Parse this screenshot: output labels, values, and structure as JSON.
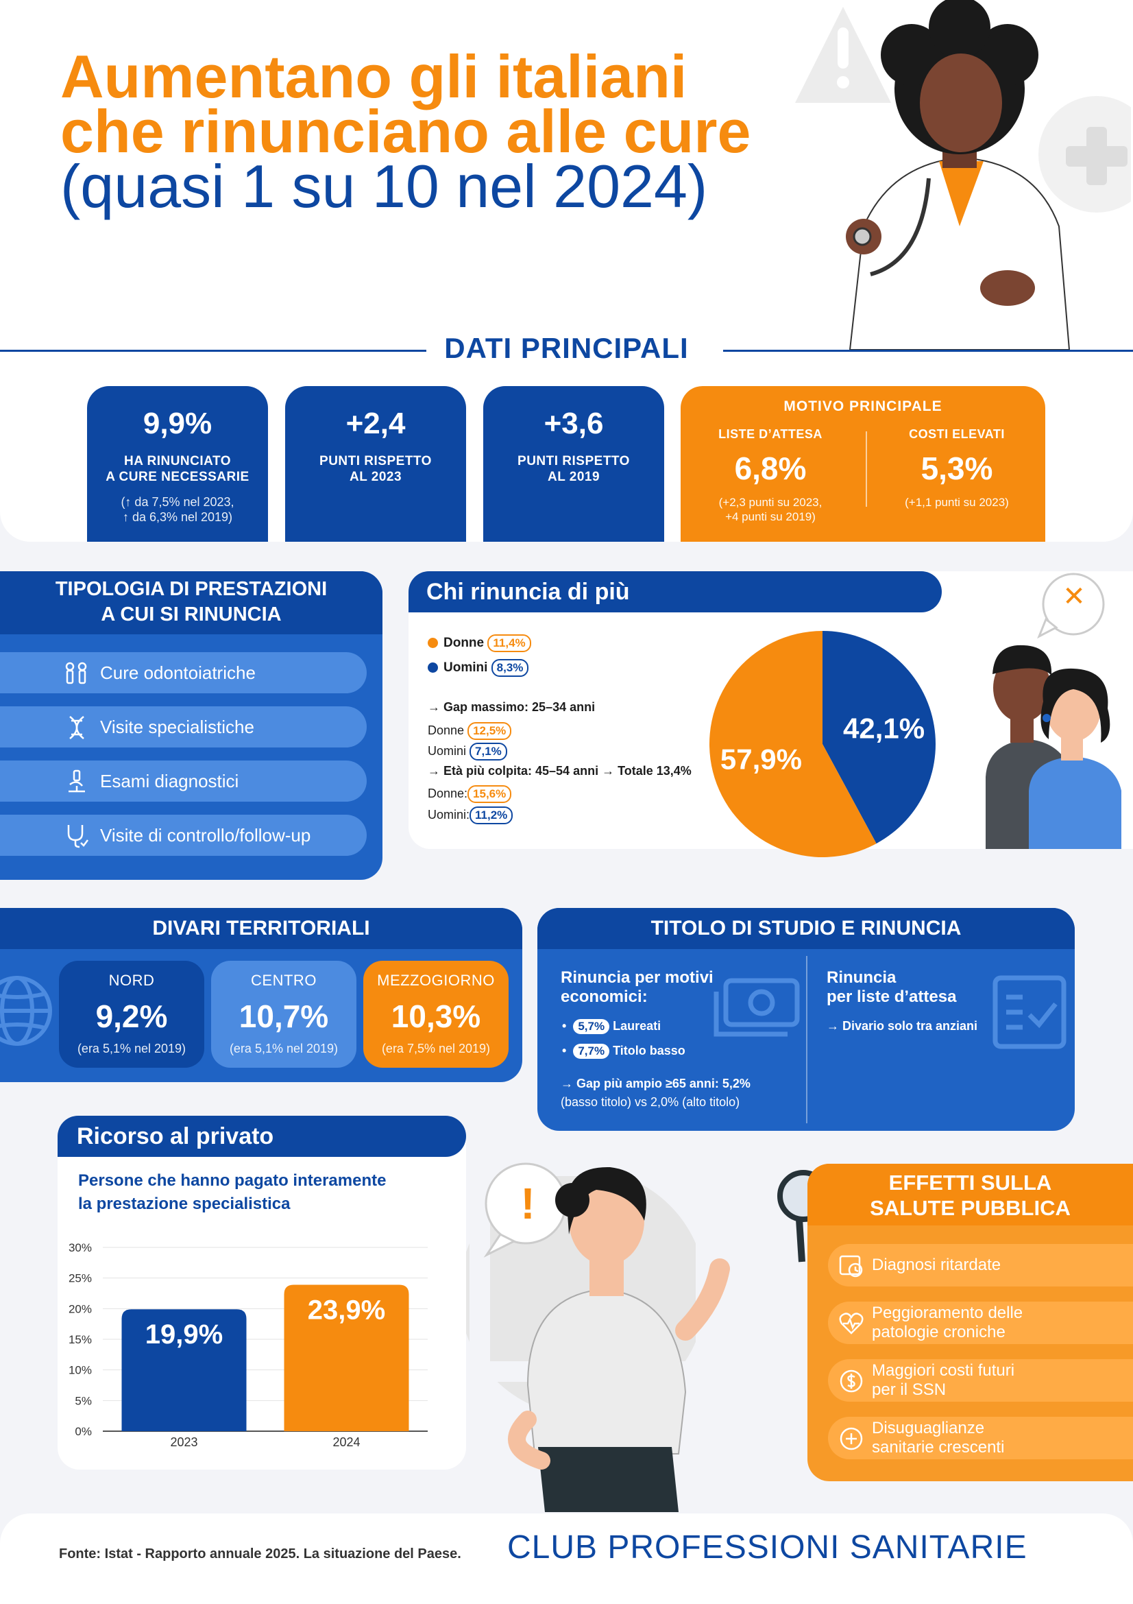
{
  "title": {
    "line1": "Aumentano gli italiani",
    "line2": "che rinunciano alle cure",
    "line3": "(quasi 1 su 10 nel 2024)"
  },
  "dati_principali": {
    "heading": "DATI PRINCIPALI",
    "stats": [
      {
        "value": "9,9%",
        "caption1": "HA RINUNCIATO",
        "caption2": "A CURE NECESSARIE",
        "sub1": "(↑ da 7,5% nel 2023,",
        "sub2": "↑ da 6,3% nel 2019)"
      },
      {
        "value": "+2,4",
        "caption1": "PUNTI RISPETTO",
        "caption2": "AL 2023"
      },
      {
        "value": "+3,6",
        "caption1": "PUNTI RISPETTO",
        "caption2": "AL 2019"
      }
    ],
    "motivo": {
      "title": "MOTIVO PRINCIPALE",
      "liste": {
        "label": "LISTE D’ATTESA",
        "value": "6,8%",
        "sub1": "(+2,3 punti su 2023,",
        "sub2": "+4 punti su 2019)"
      },
      "costi": {
        "label": "COSTI ELEVATI",
        "value": "5,3%",
        "sub1": "(+1,1 punti su 2023)"
      }
    }
  },
  "tipologia": {
    "heading1": "TIPOLOGIA DI PRESTAZIONI",
    "heading2": "A CUI SI RINUNCIA",
    "items": [
      "Cure odontoiatriche",
      "Visite specialistiche",
      "Esami diagnostici",
      "Visite di controllo/follow-up"
    ]
  },
  "chi_rinuncia": {
    "heading": "Chi rinuncia di più",
    "donne_label": "Donne",
    "donne_value": "11,4%",
    "uomini_label": "Uomini",
    "uomini_value": "8,3%",
    "gap_title": "→ Gap massimo: 25–34 anni",
    "gap_donne_label": "Donne",
    "gap_donne_value": "12,5%",
    "gap_uomini_label": "Uomini",
    "gap_uomini_value": "7,1%",
    "eta_title": "→ Età più colpita: 45–54 anni → Totale 13,4%",
    "eta_donne_label": "Donne:",
    "eta_donne_value": "15,6%",
    "eta_uomini_label": "Uomini:",
    "eta_uomini_value": "11,2%",
    "close_symbol": "✕"
  },
  "divari": {
    "heading": "DIVARI TERRITORIALI",
    "regions": [
      {
        "name": "NORD",
        "value": "9,2%",
        "sub": "(era 5,1% nel 2019)"
      },
      {
        "name": "CENTRO",
        "value": "10,7%",
        "sub": "(era 5,1% nel 2019)"
      },
      {
        "name": "MEZZOGIORNO",
        "value": "10,3%",
        "sub": "(era 7,5% nel 2019)"
      }
    ]
  },
  "studio": {
    "heading": "TITOLO DI STUDIO E RINUNCIA",
    "left_title1": "Rinuncia per motivi",
    "left_title2": "economici:",
    "laureati_value": "5,7%",
    "laureati_label": "Laureati",
    "basso_value": "7,7%",
    "basso_label": "Titolo basso",
    "gap1": "→ Gap più ampio ≥65 anni: 5,2%",
    "gap2": "(basso titolo) vs 2,0% (alto titolo)",
    "right_title1": "Rinuncia",
    "right_title2": "per liste d’attesa",
    "right_note": "→ Divario solo tra anziani"
  },
  "privato": {
    "heading": "Ricorso al privato",
    "sub1": "Persone che hanno pagato interamente",
    "sub2": "la prestazione specialistica"
  },
  "alert_symbol": "!",
  "effetti": {
    "heading1": "EFFETTI SULLA",
    "heading2": "SALUTE PUBBLICA",
    "items": [
      {
        "line1": "Diagnosi ritardate",
        "line2": ""
      },
      {
        "line1": "Peggioramento delle",
        "line2": "patologie croniche"
      },
      {
        "line1": "Maggiori costi futuri",
        "line2": "per il SSN"
      },
      {
        "line1": "Disuguaglianze",
        "line2": "sanitarie crescenti"
      }
    ]
  },
  "footer": {
    "source": "Fonte: Istat - Rapporto annuale 2025. La situazione del Paese.",
    "brand": "CLUB PROFESSIONI SANITARIE"
  },
  "colors": {
    "blue": "#0d47a1",
    "orange": "#f68b0f",
    "mid_blue": "#1f63c4"
  },
  "chart_data": [
    {
      "type": "pie",
      "title": "Chi rinuncia di più",
      "labels": [
        "Donne",
        "Uomini"
      ],
      "values": [
        57.9,
        42.1
      ],
      "value_labels": [
        "57,9%",
        "42,1%"
      ],
      "colors": [
        "#f68b0f",
        "#0d47a1"
      ]
    },
    {
      "type": "bar",
      "title": "Ricorso al privato",
      "categories": [
        "2023",
        "2024"
      ],
      "values": [
        19.9,
        23.9
      ],
      "value_labels": [
        "19,9%",
        "23,9%"
      ],
      "colors": [
        "#0d47a1",
        "#f68b0f"
      ],
      "ylim": [
        0,
        30
      ],
      "yticks": [
        "0%",
        "5%",
        "10%",
        "15%",
        "20%",
        "25%",
        "30%"
      ],
      "ytick_values": [
        0,
        5,
        10,
        15,
        20,
        25,
        30
      ]
    }
  ]
}
